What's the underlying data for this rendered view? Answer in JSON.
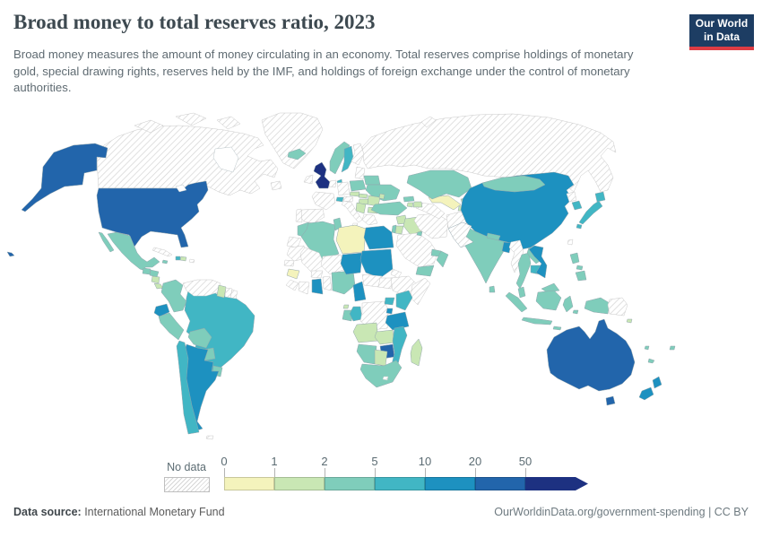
{
  "header": {
    "title": "Broad money to total reserves ratio, 2023",
    "subtitle": "Broad money measures the amount of money circulating in an economy. Total reserves comprise holdings of monetary gold, special drawing rights, reserves held by the IMF, and holdings of foreign exchange under the control of monetary authorities.",
    "logo": {
      "line1": "Our World",
      "line2": "in Data",
      "bg_color": "#1d3d63",
      "accent_color": "#dd3c44"
    }
  },
  "legend": {
    "no_data_label": "No data"
  },
  "footer": {
    "source_label": "Data source:",
    "source_value": " International Monetary Fund",
    "attribution": "OurWorldinData.org/government-spending | CC BY"
  },
  "chart_data": {
    "type": "heatmap",
    "subtype": "world-choropleth",
    "title": "Broad money to total reserves ratio, 2023",
    "year": "2023",
    "legend_position": "bottom",
    "no_data_label": "No data",
    "ticks": [
      "0",
      "1",
      "2",
      "5",
      "10",
      "20",
      "50"
    ],
    "legend_bins": [
      {
        "label": "0-1",
        "color": "#f4f3bc"
      },
      {
        "label": "1-2",
        "color": "#c9e7b4"
      },
      {
        "label": "2-5",
        "color": "#7fcdbb"
      },
      {
        "label": "5-10",
        "color": "#41b6c4"
      },
      {
        "label": "10-20",
        "color": "#1d91c0"
      },
      {
        "label": "20-50",
        "color": "#2265ab"
      },
      {
        "label": "50+",
        "color": "#1d3181"
      }
    ],
    "hatch_line_color": "#d4d4d4",
    "countries": {
      "united-states": 5,
      "canada": null,
      "greenland": null,
      "mexico": 2,
      "guatemala": 2,
      "honduras": 2,
      "nicaragua": 1,
      "costa-rica": 1,
      "panama": 3,
      "cuba": null,
      "jamaica": 2,
      "haiti": 3,
      "dominican-republic": 1,
      "puerto-rico": null,
      "colombia": 2,
      "venezuela": null,
      "guyana": 1,
      "suriname": null,
      "french-guiana": null,
      "ecuador": 4,
      "peru": 2,
      "brazil": 3,
      "bolivia": 2,
      "paraguay": 2,
      "chile": 3,
      "argentina": 4,
      "uruguay": 2,
      "falkland-islands": null,
      "iceland": 2,
      "united-kingdom": 6,
      "ireland": null,
      "norway": 2,
      "sweden": 3,
      "finland": null,
      "denmark": 3,
      "baltic-states": null,
      "poland": 2,
      "germany": null,
      "netherlands-belgium": null,
      "france": null,
      "spain": null,
      "portugal": null,
      "italy": null,
      "sicily": null,
      "switzerland": 3,
      "austria": null,
      "czechia": 1,
      "slovakia": 1,
      "hungary": 1,
      "serbia": 1,
      "romania": 1,
      "bulgaria": 1,
      "greece": null,
      "moldova": 1,
      "ukraine": 2,
      "belarus": 2,
      "russia": null,
      "morocco": 2,
      "western-sahara": null,
      "algeria": 2,
      "tunisia": 2,
      "libya": 0,
      "egypt": 4,
      "mauritania": null,
      "mali": null,
      "senegal": null,
      "guinea": 0,
      "sierra-leone-liberia": null,
      "ivory-coast": null,
      "burkina-faso": null,
      "ghana": 4,
      "togo-benin": null,
      "niger": null,
      "nigeria": 2,
      "chad": 4,
      "sudan": 4,
      "cameroon": 4,
      "central-african-republic": null,
      "south-sudan": null,
      "eritrea-djibouti": null,
      "ethiopia": null,
      "somalia": null,
      "equatorial-guinea": 1,
      "gabon": 2,
      "congo": 3,
      "democratic-republic-of-congo": null,
      "uganda": 3,
      "kenya": 3,
      "rwanda-burundi": 4,
      "tanzania": 4,
      "angola": 1,
      "zambia": 1,
      "zimbabwe": 5,
      "mozambique": 3,
      "namibia": 2,
      "botswana": 1,
      "south-africa": 2,
      "lesotho": null,
      "madagascar": 1,
      "turkey": 2,
      "syria": 1,
      "israel": 2,
      "jordan": 1,
      "iraq": 1,
      "saudi-arabia": null,
      "kuwait": 2,
      "uae": 2,
      "oman": 2,
      "yemen": 2,
      "iran": null,
      "afghanistan": null,
      "turkmenistan": null,
      "uzbekistan": 0,
      "kazakhstan": 2,
      "kyrgyzstan": 1,
      "tajikistan": 1,
      "georgia": 2,
      "armenia": 1,
      "azerbaijan": 1,
      "china": 4,
      "mongolia": 2,
      "north-korea": null,
      "south-korea": 3,
      "japan": 3,
      "taiwan": null,
      "india": 2,
      "nepal": 2,
      "bangladesh": 4,
      "sri-lanka": 2,
      "myanmar": null,
      "thailand": 2,
      "laos": 2,
      "cambodia": 3,
      "vietnam": 4,
      "malaysia": 2,
      "indonesia": 2,
      "philippines": 2,
      "papua-new-guinea": null,
      "australia": 5,
      "new-zealand": 4,
      "fiji": 2,
      "new-caledonia": 2,
      "vanuatu": 2,
      "solomon-islands": 1
    }
  }
}
